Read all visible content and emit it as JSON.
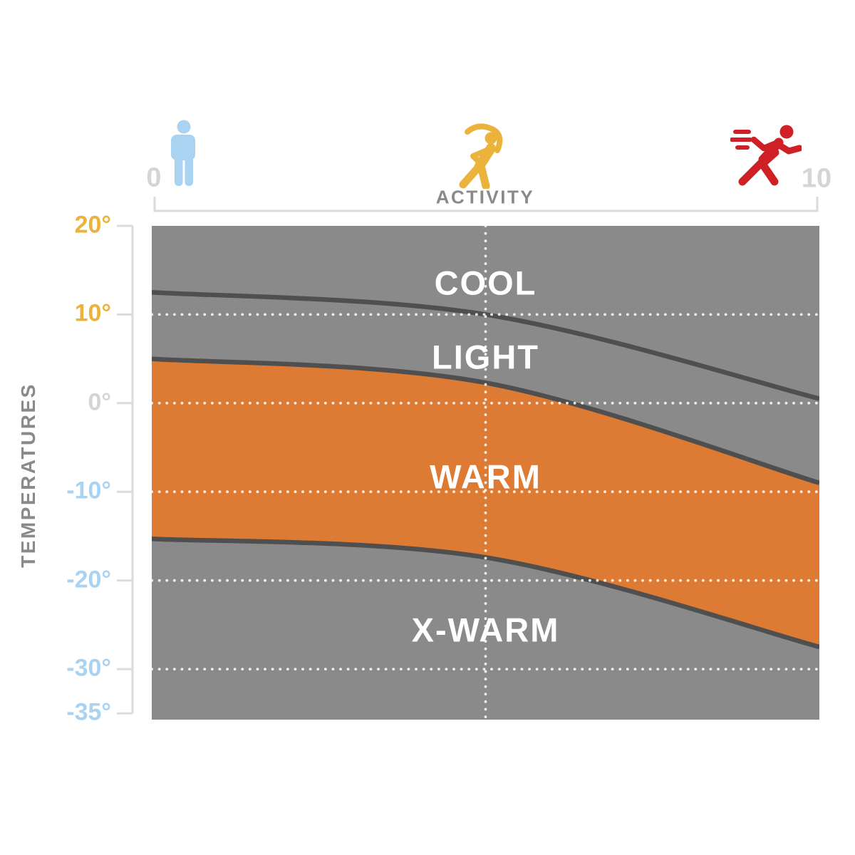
{
  "header": {
    "axis_title": "ACTIVITY",
    "min_label": "0",
    "max_label": "10",
    "icons": [
      {
        "name": "person-standing-icon",
        "color": "#A9D3F1"
      },
      {
        "name": "person-stretching-icon",
        "color": "#EBB33C"
      },
      {
        "name": "person-running-icon",
        "color": "#CF2027"
      }
    ]
  },
  "temp_axis": {
    "title": "TEMPERATURES",
    "unit": "°",
    "ticks": [
      {
        "label": "20°",
        "value": 20,
        "color": "#EBB33C"
      },
      {
        "label": "10°",
        "value": 10,
        "color": "#EBB33C"
      },
      {
        "label": "0°",
        "value": 0,
        "color": "#D5D5D5"
      },
      {
        "label": "-10°",
        "value": -10,
        "color": "#A9D3F1"
      },
      {
        "label": "-20°",
        "value": -20,
        "color": "#A9D3F1"
      },
      {
        "label": "-30°",
        "value": -30,
        "color": "#A9D3F1"
      },
      {
        "label": "-35°",
        "value": -35,
        "color": "#A9D3F1"
      }
    ]
  },
  "colors": {
    "zone_gray": "#8A8A8A",
    "band_orange": "#DD7A33",
    "boundary_line": "#4F4F4F",
    "grid_dots": "#FFFFFF",
    "axis_line": "#DBDBDB",
    "label_yellow": "#EBB33C",
    "label_blue": "#A9D3F1",
    "label_light_gray": "#D5D5D5",
    "text_gray": "#8A8A8A",
    "zone_label_white": "#FFFFFF",
    "icon_blue": "#A9D3F1",
    "icon_yellow": "#EBB33C",
    "icon_red": "#CF2027"
  },
  "chart_data": {
    "type": "area",
    "title": "",
    "xlabel": "ACTIVITY",
    "ylabel": "TEMPERATURES",
    "x_range": [
      0,
      10
    ],
    "x_ticks": [
      0,
      10
    ],
    "y_range": [
      20,
      -35.7
    ],
    "y_ticks": [
      20,
      10,
      0,
      -10,
      -20,
      -30,
      -35
    ],
    "grid": {
      "style": "dotted-white",
      "horizontal_at": [
        10,
        0,
        -10,
        -20,
        -30
      ],
      "vertical_at": [
        5
      ]
    },
    "zones": [
      {
        "label": "COOL",
        "color": "#8A8A8A",
        "label_pos": {
          "activity": 5,
          "temp": 13.6
        }
      },
      {
        "label": "LIGHT",
        "color": "#8A8A8A",
        "label_pos": {
          "activity": 5,
          "temp": 5.2
        }
      },
      {
        "label": "WARM",
        "color": "#DD7A33",
        "label_pos": {
          "activity": 5,
          "temp": -8.3
        }
      },
      {
        "label": "X-WARM",
        "color": "#8A8A8A",
        "label_pos": {
          "activity": 5,
          "temp": -25.6
        }
      }
    ],
    "boundaries": [
      {
        "name": "cool-light",
        "points": [
          [
            0,
            12.5
          ],
          [
            5,
            10.0
          ],
          [
            10,
            0.5
          ]
        ]
      },
      {
        "name": "light-warm",
        "points": [
          [
            0,
            5.0
          ],
          [
            5,
            2.3
          ],
          [
            10,
            -9.0
          ]
        ]
      },
      {
        "name": "warm-xwarm",
        "points": [
          [
            0,
            -15.3
          ],
          [
            5,
            -17.4
          ],
          [
            10,
            -27.5
          ]
        ]
      }
    ]
  }
}
